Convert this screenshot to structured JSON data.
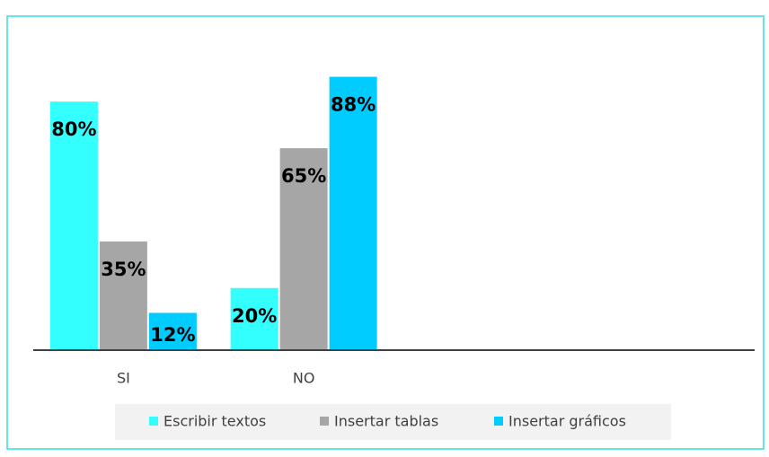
{
  "chart_data": {
    "type": "bar",
    "categories": [
      "SI",
      "NO"
    ],
    "series": [
      {
        "name": "Escribir textos",
        "color": "#33ffff",
        "values": [
          80,
          20
        ],
        "value_labels": [
          "80%",
          "20%"
        ]
      },
      {
        "name": "Insertar tablas",
        "color": "#a6a6a6",
        "values": [
          35,
          65
        ],
        "value_labels": [
          "35%",
          "65%"
        ]
      },
      {
        "name": "Insertar gráficos",
        "color": "#00ccff",
        "values": [
          12,
          88
        ],
        "value_labels": [
          "12%",
          "88%"
        ]
      }
    ],
    "ylim": [
      0,
      100
    ],
    "legend": "bottom"
  }
}
